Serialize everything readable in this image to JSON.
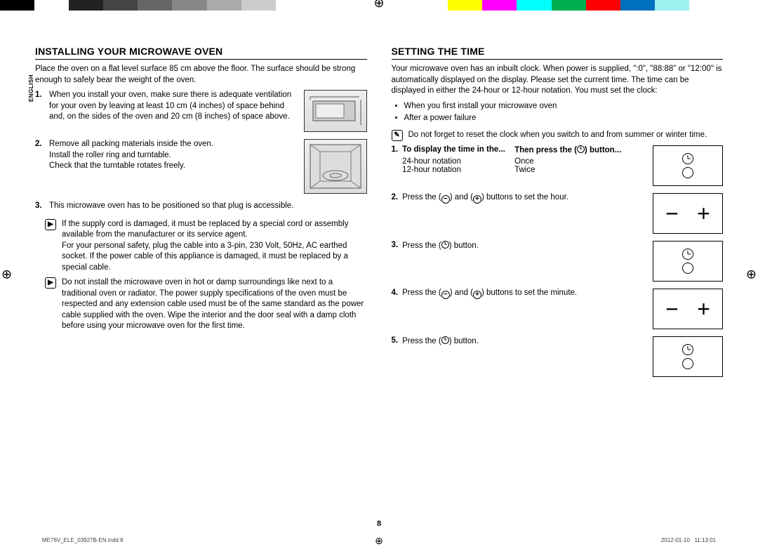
{
  "colorbar": [
    "#000000",
    "#ffffff",
    "#222222",
    "#444444",
    "#666666",
    "#888888",
    "#aaaaaa",
    "#cccccc",
    "#ffffff",
    "#ffffff",
    "#ffffff",
    "#ffffff",
    "#ffffff",
    "#ffff00",
    "#ff00ff",
    "#00ffff",
    "#00b050",
    "#ff0000",
    "#0070c0",
    "#9cf0ef",
    "#ffffff",
    "#ffffff"
  ],
  "lang_tab": "ENGLISH",
  "left": {
    "heading": "Installing your microwave oven",
    "intro": "Place the oven on a flat level surface 85 cm above the floor. The surface should be strong enough to safely bear the weight of the oven.",
    "items": [
      {
        "n": "1.",
        "txt": "When you install your oven, make sure there is adequate ventilation for your oven by leaving at least 10 cm (4 inches) of space behind and, on the sides of the oven and 20 cm (8 inches) of space above."
      },
      {
        "n": "2.",
        "txt": "Remove all packing materials inside the oven.\nInstall the roller ring and turntable.\nCheck that the turntable rotates freely."
      },
      {
        "n": "3.",
        "txt": "This microwave oven has to be positioned so that plug is accessible."
      }
    ],
    "notes": [
      "If the supply cord is damaged, it must be replaced by a special cord or assembly available from the manufacturer or its service agent.\nFor your personal safety, plug the cable into a 3-pin, 230 Volt, 50Hz, AC earthed socket. If the power cable of this appliance is damaged, it must be replaced by a special cable.",
      "Do not install the microwave oven in hot or damp surroundings like next to a traditional oven or radiator. The power supply specifications of the oven must be respected and any extension cable used must be of the same standard as the power cable supplied with the oven. Wipe the interior and the door seal with a damp cloth before using your microwave oven for the first time."
    ]
  },
  "right": {
    "heading": "Setting the time",
    "intro": "Your microwave oven has an inbuilt clock. When power is supplied, \":0\", \"88:88\" or \"12:00\" is automatically displayed on the display. Please set the current time. The time can be displayed in either the 24-hour or 12-hour notation. You must set the clock:",
    "bullets": [
      "When you first install your microwave oven",
      "After a power failure"
    ],
    "note": "Do not forget to reset the clock when you switch to and from summer or winter time.",
    "step1": {
      "head_a": "To display the time in the...",
      "head_b": "Then press the (clock) button...",
      "row_a1": "24-hour notation",
      "row_b1": "Once",
      "row_a2": "12-hour notation",
      "row_b2": "Twice"
    },
    "step2": "Press the (−) and (+) buttons to set the hour.",
    "step3": "Press the (clock) button.",
    "step4": "Press the (−) and (+) buttons to set the minute.",
    "step5": "Press the (clock) button."
  },
  "page_number": "8",
  "footer": {
    "file": "ME76V_ELE_03927B-EN.indd   8",
    "date": "2012-01-10",
    "time": "11:13:01"
  }
}
